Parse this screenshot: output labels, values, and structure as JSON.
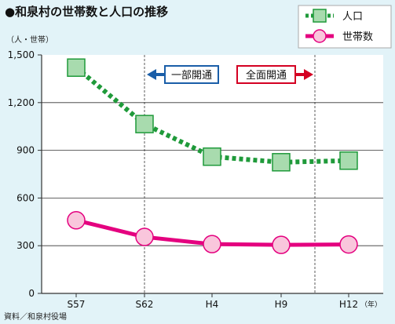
{
  "title": "●和泉村の世帯数と人口の推移",
  "unit_label": "（人・世帯）",
  "source": "資料／和泉村役場",
  "chart_data": {
    "type": "line",
    "categories": [
      "S57",
      "S62",
      "H4",
      "H9",
      "H12"
    ],
    "x_suffix": "（年）",
    "ylim": [
      0,
      1500
    ],
    "yticks": [
      0,
      300,
      600,
      900,
      1200,
      1500
    ],
    "ytick_labels": [
      "0",
      "300",
      "600",
      "900",
      "1,200",
      "1,500"
    ],
    "grid": true,
    "legend_position": "top-right",
    "series": [
      {
        "name": "人口",
        "values": [
          1420,
          1065,
          860,
          825,
          835
        ],
        "color": "#1f9a3a",
        "marker_fill": "#a8dbae",
        "style": "dotted-thick",
        "marker": "square"
      },
      {
        "name": "世帯数",
        "values": [
          460,
          355,
          310,
          305,
          308
        ],
        "color": "#e4007f",
        "marker_fill": "#f9c6dc",
        "style": "solid",
        "marker": "circle"
      }
    ],
    "annotations": [
      {
        "text": "一部開通",
        "direction": "left",
        "color": "#1a5ea8",
        "position": "between S62 and H4"
      },
      {
        "text": "全面開通",
        "direction": "right",
        "color": "#d40022",
        "position": "between H4 and H9"
      }
    ],
    "reference_lines": [
      "S62",
      "H9-H12"
    ]
  }
}
